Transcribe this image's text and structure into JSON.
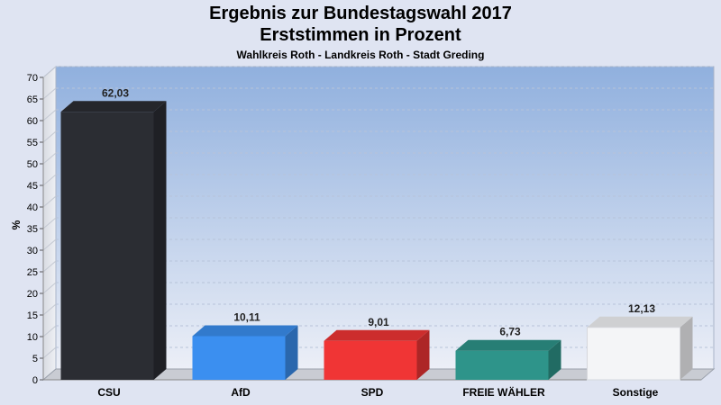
{
  "header": {
    "title_line1": "Ergebnis zur Bundestagswahl 2017",
    "title_line2": "Erststimmen in Prozent",
    "subtitle": "Wahlkreis Roth - Landkreis Roth - Stadt Greding"
  },
  "chart_data": {
    "type": "bar",
    "title": "Ergebnis zur Bundestagswahl 2017 Erststimmen in Prozent",
    "subtitle": "Wahlkreis Roth - Landkreis Roth - Stadt Greding",
    "xlabel": "",
    "ylabel": "%",
    "ylim": [
      0,
      70
    ],
    "yticks": [
      0,
      5,
      10,
      15,
      20,
      25,
      30,
      35,
      40,
      45,
      50,
      55,
      60,
      65,
      70
    ],
    "grid": true,
    "categories": [
      "CSU",
      "AfD",
      "SPD",
      "FREIE WÄHLER",
      "Sonstige"
    ],
    "values": [
      62.03,
      10.11,
      9.01,
      6.73,
      12.13
    ],
    "value_labels": [
      "62,03",
      "10,11",
      "9,01",
      "6,73",
      "12,13"
    ],
    "colors": [
      "#2b2d33",
      "#3b8ff0",
      "#f03535",
      "#2e948a",
      "#f4f5f7"
    ]
  }
}
